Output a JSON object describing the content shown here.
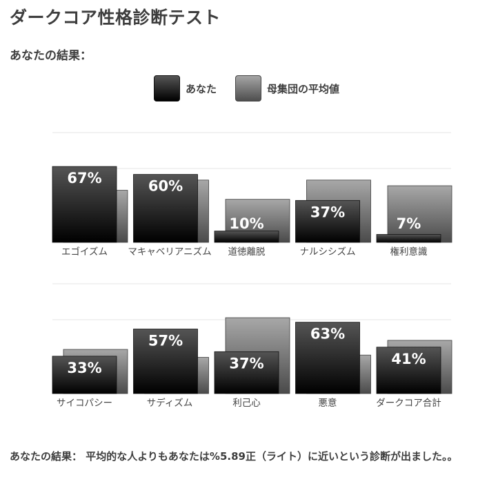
{
  "page": {
    "title": "ダークコア性格診断テスト",
    "subtitle": "あなたの結果："
  },
  "legend": {
    "you_label": "あなた",
    "avg_label": "母集団の平均値"
  },
  "colors": {
    "you_top": "#555555",
    "you_bottom": "#000000",
    "avg_top": "#a8a8a8",
    "avg_bottom": "#4a4a4a",
    "grid": "#e6e6e6",
    "value_label": "#ffffff",
    "category_label": "#444444"
  },
  "chart_data": [
    {
      "type": "bar",
      "categories": [
        "エゴイズム",
        "マキャベリアニズム",
        "道徳離脱",
        "ナルシシズム",
        "権利意識"
      ],
      "series": [
        {
          "name": "あなた",
          "values": [
            67,
            60,
            10,
            37,
            7
          ]
        },
        {
          "name": "母集団の平均値",
          "values": [
            46,
            55,
            38,
            55,
            50
          ]
        }
      ],
      "value_labels": [
        "67%",
        "60%",
        "10%",
        "37%",
        "7%"
      ],
      "ylim": [
        0,
        100
      ],
      "grid": true
    },
    {
      "type": "bar",
      "categories": [
        "サイコパシー",
        "サディズム",
        "利己心",
        "悪意",
        "ダークコア合計"
      ],
      "series": [
        {
          "name": "あなた",
          "values": [
            33,
            57,
            37,
            63,
            41
          ]
        },
        {
          "name": "母集団の平均値",
          "values": [
            39,
            32,
            67,
            34,
            47
          ]
        }
      ],
      "value_labels": [
        "33%",
        "57%",
        "37%",
        "63%",
        "41%"
      ],
      "ylim": [
        0,
        100
      ],
      "grid": true
    }
  ],
  "result": {
    "text": "あなたの結果： 平均的な人よりもあなたは%5.89正（ライト）に近いという診断が出ました。。"
  }
}
